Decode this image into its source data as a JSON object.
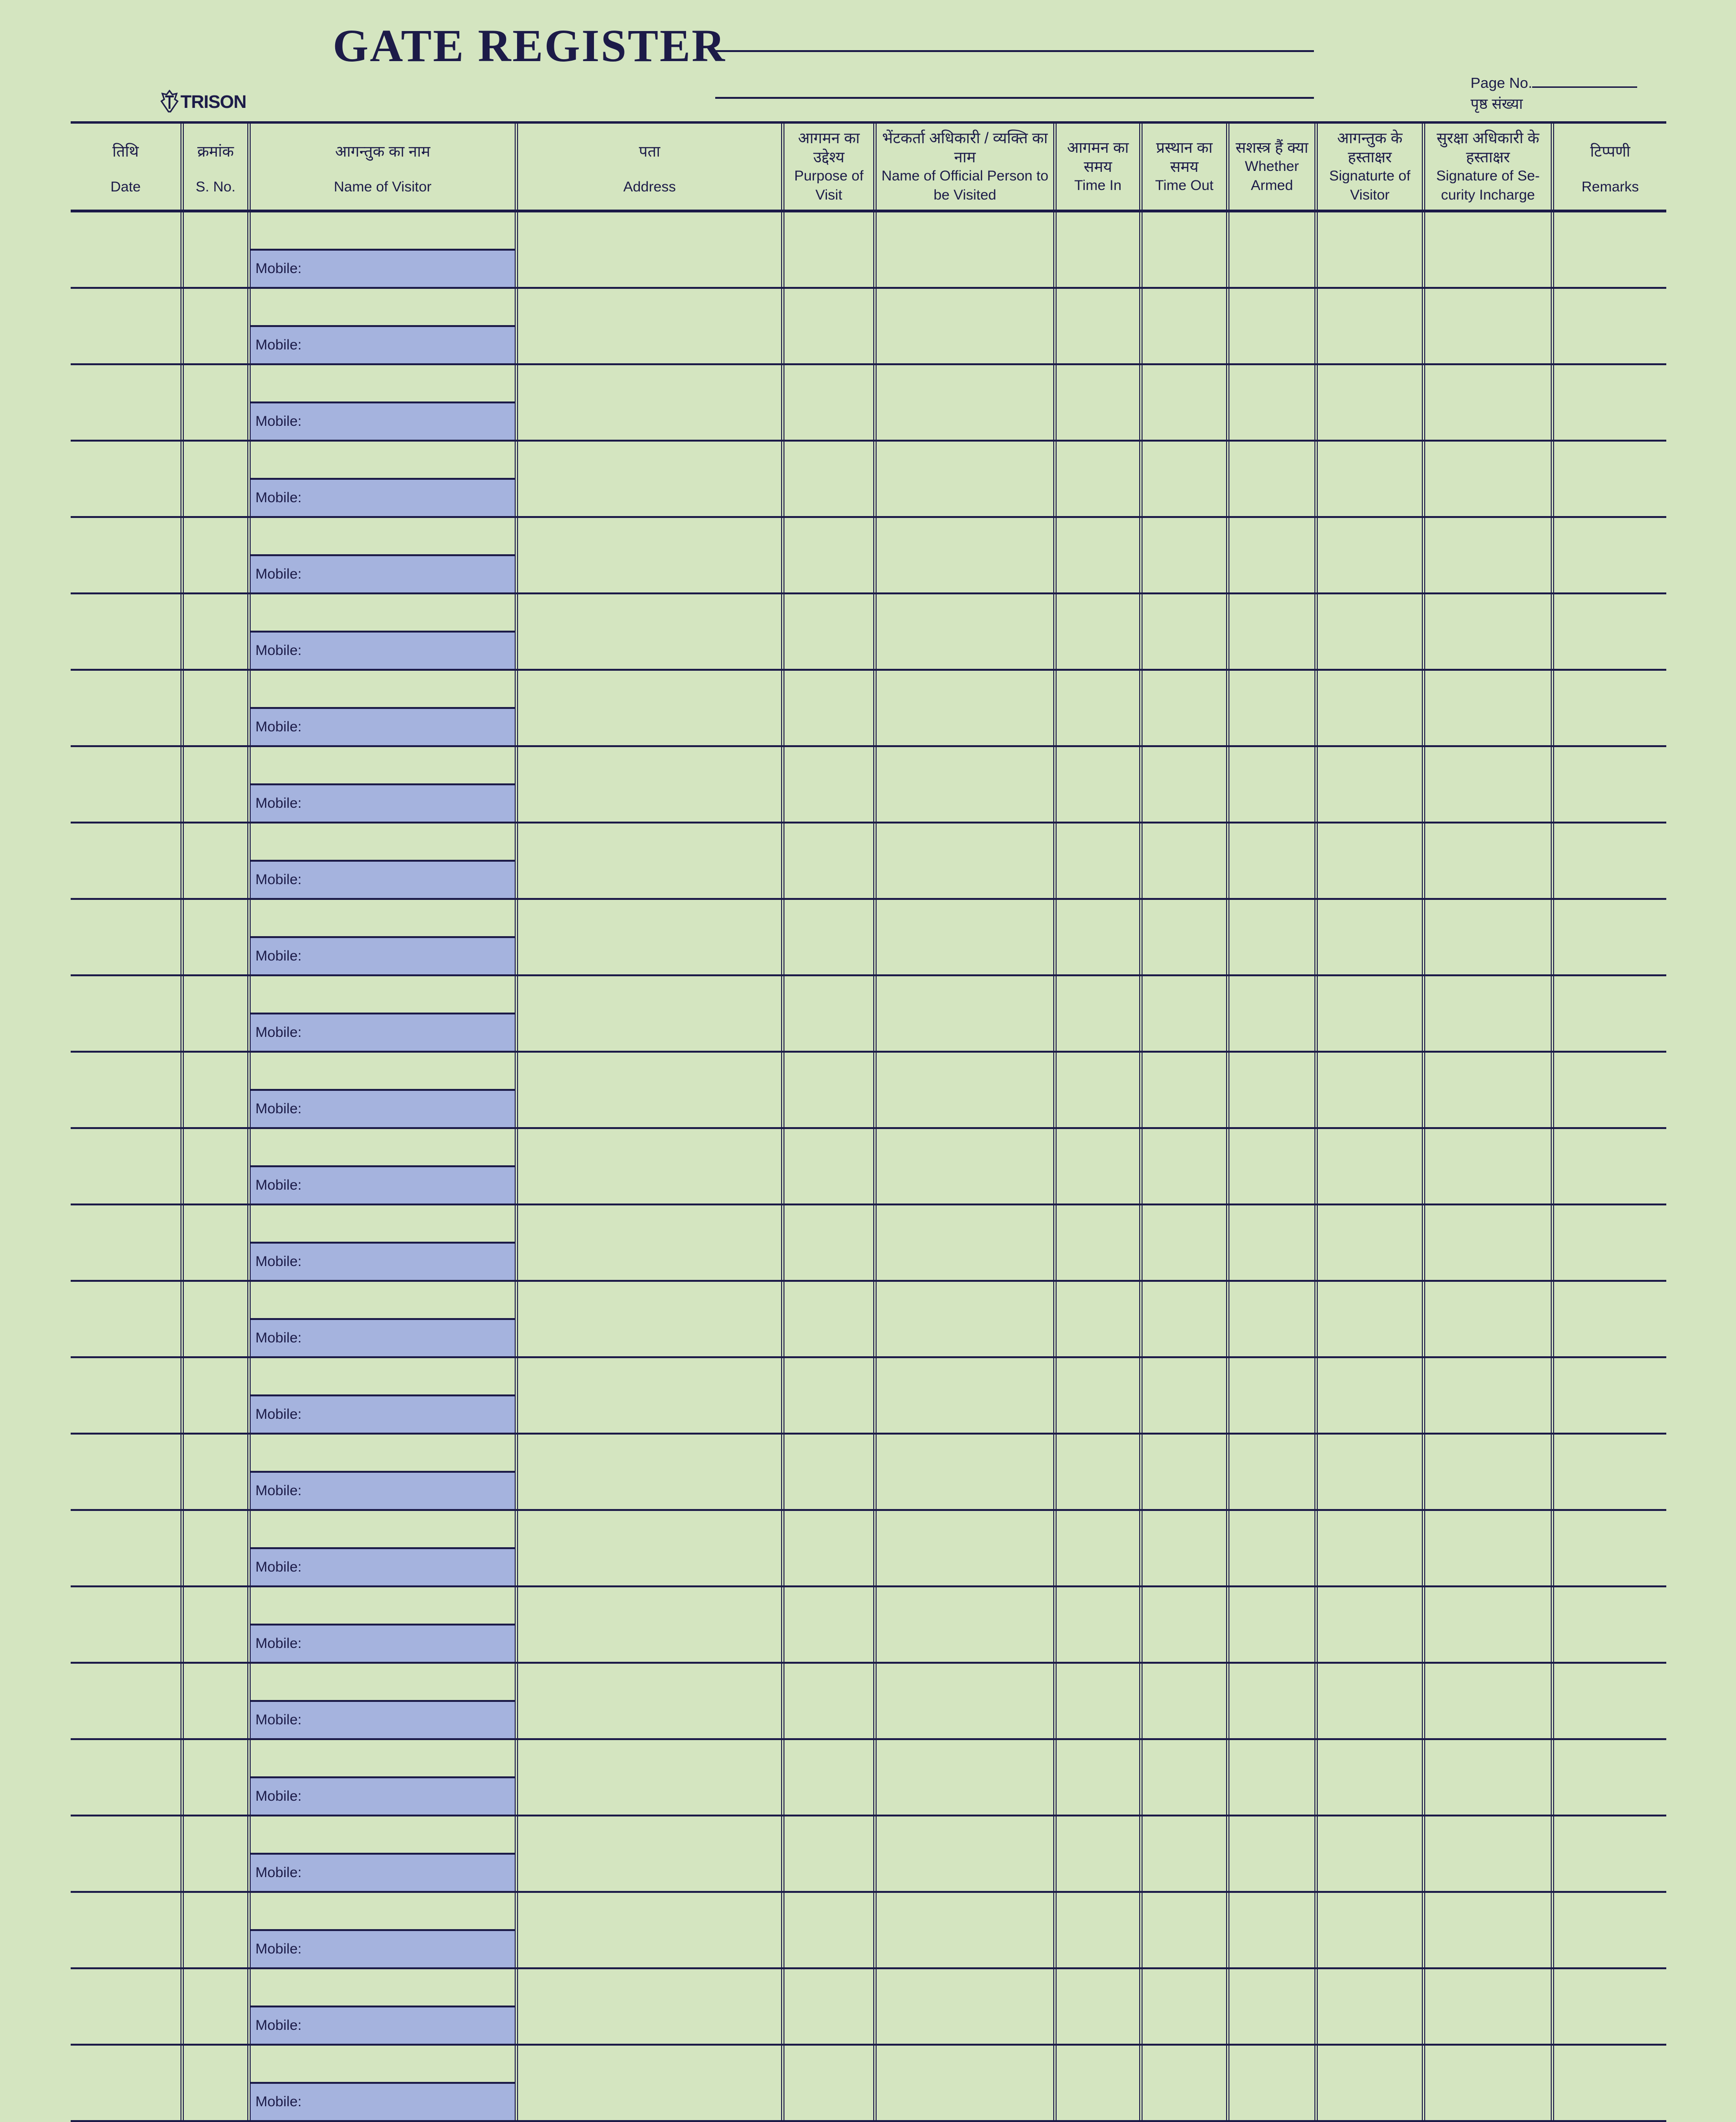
{
  "header": {
    "title": "GATE REGISTER",
    "brand": "TRISON",
    "page_no_label": "Page No.",
    "page_no_label_hi": "पृष्ठ संख्या",
    "page_no_value": ""
  },
  "colors": {
    "background": "#d4e5c0",
    "ink": "#1c1b48",
    "mobile_band": "#a5b3de"
  },
  "columns": [
    {
      "hi": "तिथि",
      "en": "Date"
    },
    {
      "hi": "क्रमांक",
      "en": "S. No."
    },
    {
      "hi": "आगन्तुक का नाम",
      "en": "Name of Visitor"
    },
    {
      "hi": "पता",
      "en": "Address"
    },
    {
      "hi": "आगमन का उद्देश्य",
      "en": "Purpose of Visit"
    },
    {
      "hi": "भेंटकर्ता अधिकारी / व्यक्ति का नाम",
      "en": "Name of Official Person to be Visited"
    },
    {
      "hi": "आगमन का समय",
      "en": "Time In"
    },
    {
      "hi": "प्रस्थान का समय",
      "en": "Time Out"
    },
    {
      "hi": "सशस्त्र हैं क्या",
      "en": "Whether Armed"
    },
    {
      "hi": "आगन्तुक के हस्ताक्षर",
      "en": "Signaturte of Visitor"
    },
    {
      "hi": "सुरक्षा अधिकारी के हस्ताक्षर",
      "en": "Signature of Se-curity Incharge"
    },
    {
      "hi": "टिप्पणी",
      "en": "Remarks"
    }
  ],
  "row_count": 25,
  "mobile_label": "Mobile:",
  "rows": []
}
